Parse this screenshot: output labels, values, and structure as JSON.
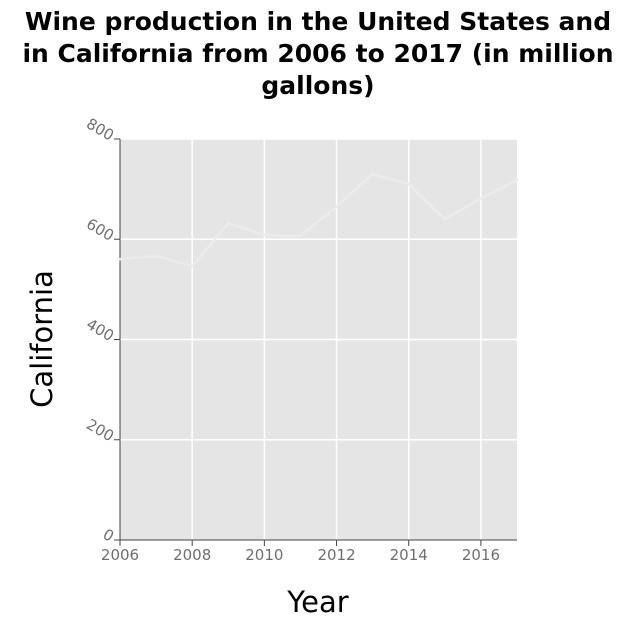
{
  "chart_data": {
    "type": "line",
    "title": "Wine production in the United States and in California from 2006 to 2017 (in million gallons)",
    "title_lines": [
      "Wine production in the United States and",
      "in California from 2006 to 2017 (in million",
      "gallons)"
    ],
    "xlabel": "Year",
    "ylabel": "California",
    "xlim": [
      2006,
      2017
    ],
    "ylim": [
      0,
      800
    ],
    "x_ticks": [
      {
        "value": 2006,
        "label": "2006"
      },
      {
        "value": 2008,
        "label": "2008"
      },
      {
        "value": 2010,
        "label": "2010"
      },
      {
        "value": 2012,
        "label": "2012"
      },
      {
        "value": 2014,
        "label": "2014"
      },
      {
        "value": 2016,
        "label": "2016"
      }
    ],
    "y_ticks": [
      {
        "value": 0,
        "label": "0"
      },
      {
        "value": 200,
        "label": "200"
      },
      {
        "value": 400,
        "label": "400"
      },
      {
        "value": 600,
        "label": "600"
      },
      {
        "value": 800,
        "label": "800"
      }
    ],
    "grid": true,
    "legend": "none",
    "series": [
      {
        "x": [
          2006,
          2007,
          2008,
          2009,
          2010,
          2011,
          2012,
          2013,
          2014,
          2015,
          2016,
          2017
        ],
        "values": [
          560,
          567,
          546,
          632,
          608,
          607,
          665,
          730,
          710,
          640,
          681,
          718
        ]
      }
    ],
    "colors": {
      "plot_background": "#e5e5e5",
      "grid": "#ffffff",
      "line": "#ebebeb",
      "tick_text": "#6f6f6f",
      "axis": "#444444"
    }
  }
}
